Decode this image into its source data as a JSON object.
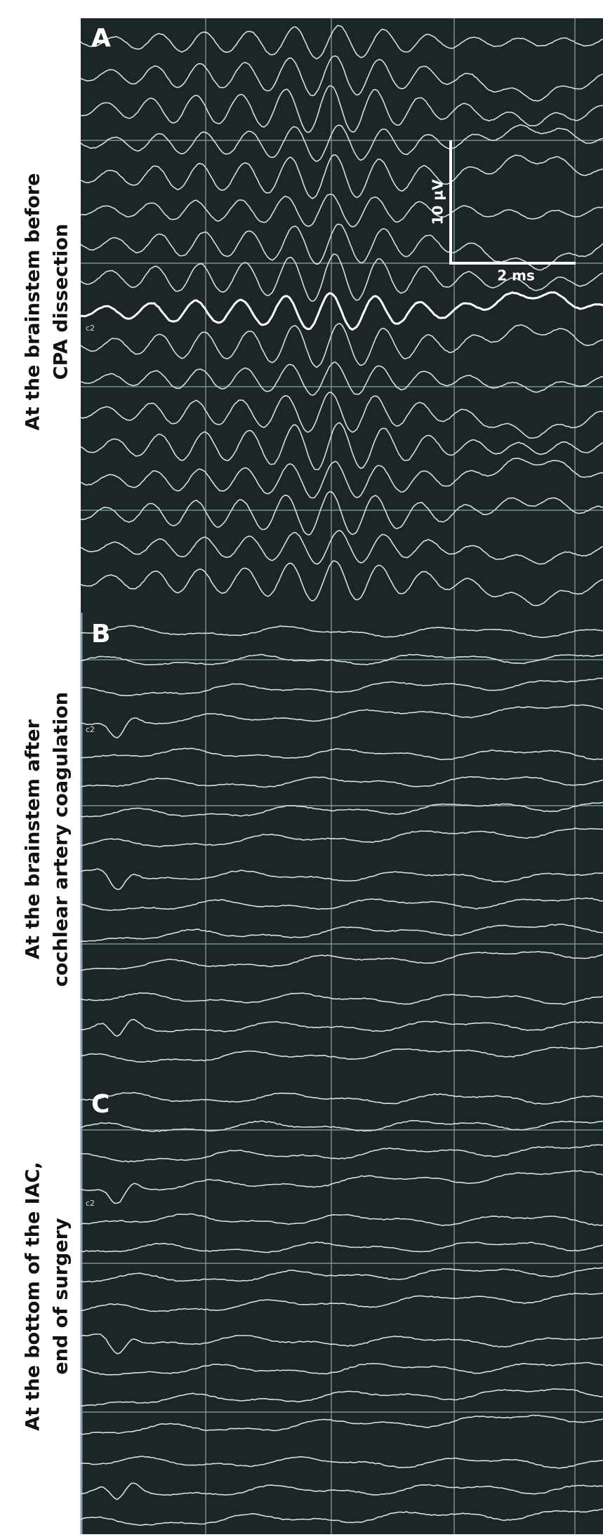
{
  "panels": [
    {
      "label": "A",
      "caption": [
        "At the brainstem before",
        "CPA dissection"
      ],
      "channel": "c2"
    },
    {
      "label": "B",
      "caption": [
        "At the brainstem after",
        "cochlear artery coagulation"
      ],
      "channel": "c2"
    },
    {
      "label": "C",
      "caption": [
        "At the bottom of the IAC,",
        "end of surgery"
      ],
      "channel": "c2"
    }
  ],
  "scale_bar": {
    "vertical": "10 µV",
    "horizontal": "2 ms"
  }
}
